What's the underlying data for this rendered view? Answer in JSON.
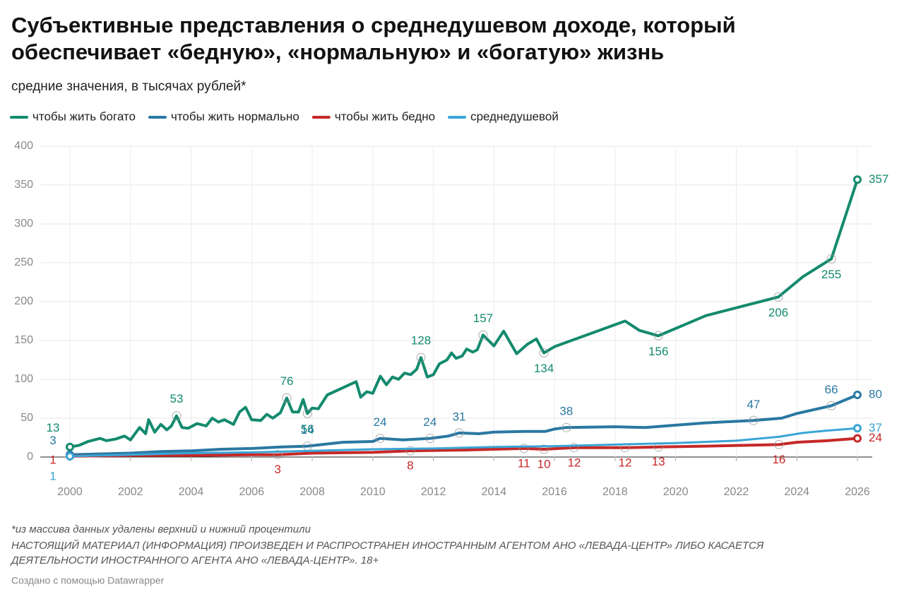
{
  "chart_data": {
    "type": "line",
    "title": "Субъективные представления о среднедушевом доходе, который обеспечивает «бедную», «нормальную» и «богатую» жизнь",
    "title_lines": [
      "Субъективные представления о среднедушевом доходе, который",
      "обеспечивает «бедную», «нормальную» и «богатую» жизнь"
    ],
    "subtitle": "средние значения, в тысячах рублей*",
    "xlim": [
      2000,
      2026
    ],
    "xticks": [
      2000,
      2002,
      2004,
      2006,
      2008,
      2010,
      2012,
      2014,
      2016,
      2018,
      2020,
      2022,
      2024,
      2026
    ],
    "ylim": [
      0,
      400
    ],
    "yticks": [
      0,
      50,
      100,
      150,
      200,
      250,
      300,
      350,
      400
    ],
    "grid": true,
    "legend": "top",
    "series": [
      {
        "name": "чтобы жить богато",
        "color": "#138a6e",
        "x": [
          2000,
          2000.3,
          2000.6,
          2001,
          2001.2,
          2001.5,
          2001.8,
          2002.0,
          2002.3,
          2002.5,
          2002.6,
          2002.8,
          2003.0,
          2003.2,
          2003.35,
          2003.52,
          2003.7,
          2003.9,
          2004.2,
          2004.5,
          2004.7,
          2004.9,
          2005.1,
          2005.4,
          2005.6,
          2005.8,
          2006.0,
          2006.3,
          2006.5,
          2006.7,
          2006.95,
          2007.16,
          2007.35,
          2007.55,
          2007.7,
          2007.84,
          2008.0,
          2008.2,
          2008.5,
          2009.45,
          2009.6,
          2009.8,
          2010.0,
          2010.25,
          2010.45,
          2010.65,
          2010.85,
          2011.05,
          2011.25,
          2011.45,
          2011.59,
          2011.8,
          2012.0,
          2012.2,
          2012.45,
          2012.6,
          2012.75,
          2012.95,
          2013.1,
          2013.3,
          2013.45,
          2013.64,
          2014.0,
          2014.32,
          2014.75,
          2015.1,
          2015.4,
          2015.65,
          2016.0,
          2018.33,
          2018.8,
          2019.43,
          2021.0,
          2023.39,
          2024.2,
          2025.14,
          2026
        ],
        "values": [
          13,
          15,
          20,
          24,
          21,
          23,
          27,
          22,
          38,
          30,
          48,
          32,
          42,
          35,
          40,
          53,
          38,
          37,
          43,
          40,
          50,
          45,
          48,
          42,
          58,
          64,
          48,
          47,
          55,
          50,
          57,
          76,
          58,
          58,
          74,
          56,
          63,
          62,
          80,
          97,
          77,
          84,
          82,
          104,
          93,
          103,
          100,
          108,
          106,
          113,
          128,
          103,
          106,
          120,
          125,
          134,
          127,
          130,
          139,
          135,
          138,
          157,
          143,
          162,
          133,
          145,
          152,
          134,
          142,
          175,
          163,
          156,
          182,
          206,
          232,
          255,
          357
        ],
        "value_labels": [
          "13",
          null,
          null,
          null,
          null,
          null,
          null,
          null,
          null,
          null,
          null,
          null,
          null,
          null,
          null,
          "53",
          null,
          null,
          null,
          null,
          null,
          null,
          null,
          null,
          null,
          null,
          null,
          null,
          null,
          null,
          null,
          "76",
          null,
          null,
          null,
          "56",
          null,
          null,
          null,
          null,
          null,
          null,
          null,
          null,
          null,
          null,
          null,
          null,
          null,
          null,
          "128",
          null,
          null,
          null,
          null,
          null,
          null,
          null,
          null,
          null,
          null,
          "157",
          null,
          null,
          null,
          null,
          null,
          "134",
          null,
          null,
          null,
          "156",
          null,
          "206",
          null,
          "255",
          "357"
        ]
      },
      {
        "name": "чтобы жить нормально",
        "color": "#2a78a2",
        "x": [
          2000,
          2001,
          2002,
          2003,
          2004,
          2005,
          2006,
          2007,
          2007.84,
          2009,
          2010,
          2010.24,
          2011,
          2011.89,
          2012.5,
          2012.85,
          2013.5,
          2014,
          2015,
          2015.7,
          2016,
          2016.39,
          2018,
          2019,
          2020,
          2021,
          2022.57,
          2023.5,
          2024,
          2025.14,
          2026
        ],
        "values": [
          3,
          4,
          5,
          7,
          8,
          10,
          11,
          13,
          14,
          19,
          20,
          24,
          22,
          24,
          27,
          31,
          30,
          32,
          33,
          33,
          36,
          38,
          39,
          38,
          41,
          44,
          47,
          50,
          56,
          66,
          80
        ],
        "value_labels": [
          "3",
          null,
          null,
          null,
          null,
          null,
          null,
          null,
          "14",
          null,
          null,
          "24",
          null,
          "24",
          null,
          "31",
          null,
          null,
          null,
          null,
          null,
          "38",
          null,
          null,
          null,
          null,
          "47",
          null,
          null,
          "66",
          "80"
        ]
      },
      {
        "name": "чтобы жить бедно",
        "color": "#c62828",
        "x": [
          2000,
          2002,
          2004,
          2006,
          2006.86,
          2008,
          2010,
          2011.24,
          2013,
          2014.99,
          2015.65,
          2016.65,
          2018.33,
          2019.43,
          2021,
          2023.41,
          2024,
          2025,
          2026
        ],
        "values": [
          1,
          2,
          2,
          3,
          3,
          5,
          6,
          8,
          9,
          11,
          10,
          12,
          12,
          13,
          14,
          16,
          19,
          21,
          24
        ],
        "value_labels": [
          "1",
          null,
          null,
          null,
          "3",
          null,
          null,
          "8",
          null,
          "11",
          "10",
          "12",
          "12",
          "13",
          null,
          "16",
          null,
          null,
          "24"
        ]
      },
      {
        "name": "среднедушевой",
        "color": "#3aa5d6",
        "x": [
          2000,
          2002,
          2004,
          2006,
          2008,
          2010,
          2012,
          2014,
          2016,
          2018,
          2020,
          2022,
          2023.4,
          2024.2,
          2025,
          2026
        ],
        "values": [
          1,
          3,
          5,
          6,
          8,
          10,
          11,
          13,
          14,
          16,
          18,
          21,
          26,
          31,
          34,
          37
        ],
        "value_labels": [
          "1",
          null,
          null,
          null,
          null,
          null,
          null,
          null,
          null,
          null,
          null,
          null,
          null,
          null,
          null,
          "37"
        ]
      }
    ],
    "notes": [
      "*из массива данных удалены верхний и нижний процентили",
      "НАСТОЯЩИЙ МАТЕРИАЛ (ИНФОРМАЦИЯ) ПРОИЗВЕДЕН И РАСПРОСТРАНЕН ИНОСТРАННЫМ АГЕНТОМ АНО «ЛЕВАДА-ЦЕНТР» ЛИБО КАСАЕТСЯ",
      "ДЕЯТЕЛЬНОСТИ ИНОСТРАННОГО АГЕНТА АНО «ЛЕВАДА-ЦЕНТР». 18+"
    ],
    "credit": "Создано с помощью Datawrapper"
  }
}
